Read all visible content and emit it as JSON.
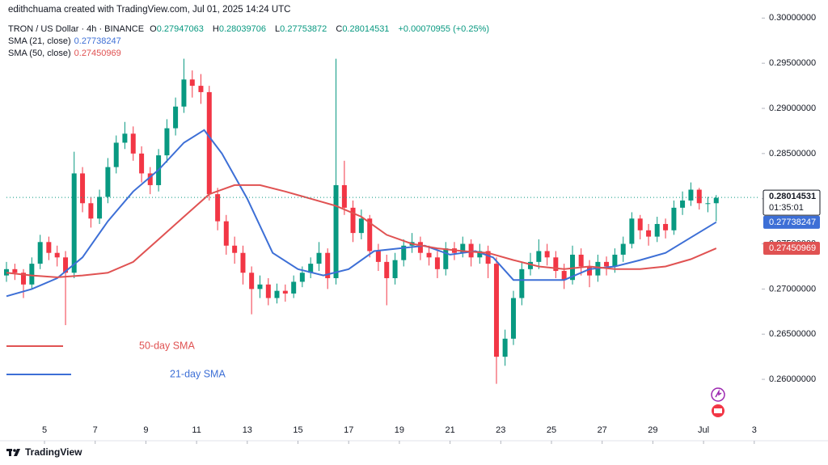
{
  "header": {
    "credit": "edithchuama created with TradingView.com, Jul 01, 2025 14:24 UTC",
    "symbol": "TRON / US Dollar · 4h · BINANCE",
    "ohlc": [
      {
        "label": "O",
        "value": "0.27947063"
      },
      {
        "label": "H",
        "value": "0.28039706"
      },
      {
        "label": "L",
        "value": "0.27753872"
      },
      {
        "label": "C",
        "value": "0.28014531"
      }
    ],
    "change": "+0.00070955 (+0.25%)"
  },
  "indicators": [
    {
      "name": "SMA (21, close)",
      "value": "0.27738247"
    },
    {
      "name": "SMA (50, close)",
      "value": "0.27450969"
    }
  ],
  "footer": "TradingView",
  "chart_data": {
    "type": "candlestick",
    "x": [
      3.5,
      3.83,
      4.17,
      4.5,
      4.83,
      5.17,
      5.5,
      5.83,
      6.17,
      6.5,
      6.83,
      7.17,
      7.5,
      7.83,
      8.17,
      8.5,
      8.83,
      9.17,
      9.5,
      9.83,
      10.17,
      10.5,
      10.83,
      11.17,
      11.5,
      11.83,
      12.17,
      12.5,
      12.83,
      13.17,
      13.5,
      13.83,
      14.17,
      14.5,
      14.83,
      15.17,
      15.5,
      15.83,
      16.17,
      16.5,
      16.83,
      17.17,
      17.5,
      17.83,
      18.17,
      18.5,
      18.83,
      19.17,
      19.5,
      19.83,
      20.17,
      20.5,
      20.83,
      21.17,
      21.5,
      21.83,
      22.17,
      22.5,
      22.83,
      23.17,
      23.5,
      23.83,
      24.17,
      24.5,
      24.83,
      25.17,
      25.5,
      25.83,
      26.17,
      26.5,
      26.83,
      27.17,
      27.5,
      27.83,
      28.17,
      28.5,
      28.83,
      29.17,
      29.5,
      29.83,
      30.17,
      30.5,
      30.83,
      31.17,
      31.5
    ],
    "open": [
      0.2715,
      0.2722,
      0.2718,
      0.2705,
      0.2728,
      0.2752,
      0.274,
      0.2735,
      0.2718,
      0.2828,
      0.2795,
      0.2778,
      0.2802,
      0.2835,
      0.2862,
      0.2872,
      0.285,
      0.2828,
      0.2815,
      0.2848,
      0.2878,
      0.2902,
      0.2932,
      0.2925,
      0.2918,
      0.2805,
      0.2775,
      0.2748,
      0.274,
      0.2718,
      0.27,
      0.2705,
      0.269,
      0.2698,
      0.2695,
      0.2708,
      0.2718,
      0.2728,
      0.274,
      0.2712,
      0.2815,
      0.279,
      0.2762,
      0.2778,
      0.2742,
      0.273,
      0.2712,
      0.2732,
      0.2748,
      0.2752,
      0.274,
      0.2735,
      0.2722,
      0.2745,
      0.274,
      0.275,
      0.2735,
      0.2742,
      0.2728,
      0.2625,
      0.2645,
      0.269,
      0.2722,
      0.273,
      0.2742,
      0.2735,
      0.272,
      0.271,
      0.2738,
      0.2725,
      0.2715,
      0.273,
      0.2725,
      0.2738,
      0.275,
      0.2778,
      0.2765,
      0.2758,
      0.2772,
      0.2765,
      0.279,
      0.2798,
      0.281,
      0.2795,
      0.2795
    ],
    "high": [
      0.273,
      0.2728,
      0.2722,
      0.2735,
      0.276,
      0.2758,
      0.2748,
      0.2742,
      0.2852,
      0.2835,
      0.2802,
      0.281,
      0.2845,
      0.287,
      0.2885,
      0.288,
      0.2858,
      0.2835,
      0.2855,
      0.2888,
      0.2912,
      0.2955,
      0.2942,
      0.2938,
      0.2925,
      0.2812,
      0.2782,
      0.2758,
      0.2748,
      0.2725,
      0.2715,
      0.2712,
      0.2706,
      0.2705,
      0.2715,
      0.2725,
      0.2735,
      0.2752,
      0.2745,
      0.2955,
      0.2842,
      0.2798,
      0.2788,
      0.2782,
      0.275,
      0.2738,
      0.274,
      0.2755,
      0.2762,
      0.2758,
      0.2748,
      0.2742,
      0.2752,
      0.2752,
      0.2758,
      0.2755,
      0.275,
      0.2748,
      0.2735,
      0.2655,
      0.2698,
      0.273,
      0.274,
      0.2755,
      0.275,
      0.2742,
      0.2728,
      0.2748,
      0.2745,
      0.2732,
      0.2738,
      0.2736,
      0.2745,
      0.2758,
      0.2785,
      0.2782,
      0.2772,
      0.278,
      0.2778,
      0.2798,
      0.2808,
      0.2818,
      0.2812,
      0.2802,
      0.2804
    ],
    "low": [
      0.2708,
      0.271,
      0.269,
      0.27,
      0.2722,
      0.2732,
      0.2725,
      0.266,
      0.2712,
      0.2785,
      0.2768,
      0.2772,
      0.2795,
      0.2828,
      0.2855,
      0.2842,
      0.2818,
      0.2805,
      0.2808,
      0.284,
      0.287,
      0.2895,
      0.2912,
      0.2905,
      0.2798,
      0.2765,
      0.2738,
      0.2728,
      0.2705,
      0.2672,
      0.269,
      0.2682,
      0.2684,
      0.2686,
      0.269,
      0.2702,
      0.2712,
      0.272,
      0.27,
      0.2705,
      0.2782,
      0.2752,
      0.2755,
      0.2735,
      0.272,
      0.2682,
      0.2705,
      0.2725,
      0.274,
      0.2732,
      0.2726,
      0.2712,
      0.2715,
      0.2732,
      0.2735,
      0.2725,
      0.2728,
      0.2712,
      0.2595,
      0.2615,
      0.2638,
      0.2682,
      0.2715,
      0.2722,
      0.2726,
      0.2712,
      0.27,
      0.2705,
      0.2715,
      0.2702,
      0.2708,
      0.2715,
      0.2718,
      0.273,
      0.2745,
      0.2755,
      0.2748,
      0.2752,
      0.2756,
      0.276,
      0.2782,
      0.2792,
      0.2788,
      0.2785,
      0.2775
    ],
    "close": [
      0.2722,
      0.2718,
      0.2705,
      0.2728,
      0.2752,
      0.274,
      0.2735,
      0.2718,
      0.2828,
      0.2795,
      0.2778,
      0.2802,
      0.2835,
      0.2862,
      0.2872,
      0.285,
      0.2828,
      0.2815,
      0.2848,
      0.2878,
      0.2902,
      0.2932,
      0.2925,
      0.2918,
      0.2805,
      0.2775,
      0.2748,
      0.274,
      0.2718,
      0.27,
      0.2705,
      0.269,
      0.2698,
      0.2695,
      0.2708,
      0.2718,
      0.2728,
      0.274,
      0.2712,
      0.2815,
      0.279,
      0.2762,
      0.2778,
      0.2742,
      0.273,
      0.2712,
      0.2732,
      0.2748,
      0.2752,
      0.274,
      0.2735,
      0.2722,
      0.2745,
      0.274,
      0.275,
      0.2735,
      0.2742,
      0.2728,
      0.2625,
      0.2645,
      0.269,
      0.2722,
      0.273,
      0.2742,
      0.2735,
      0.272,
      0.271,
      0.2738,
      0.2725,
      0.2715,
      0.273,
      0.2725,
      0.2738,
      0.275,
      0.2778,
      0.2765,
      0.2758,
      0.2772,
      0.2765,
      0.279,
      0.2798,
      0.281,
      0.2795,
      0.2795,
      0.2801
    ],
    "up_color": "#089981",
    "down_color": "#f23645",
    "series": [
      {
        "name": "21-day SMA",
        "color": "#3d6fd6",
        "x": [
          3.5,
          4.5,
          5.5,
          6.5,
          7.5,
          8.5,
          9.5,
          10.5,
          11.3,
          12,
          13,
          14,
          15,
          16,
          17,
          18,
          19,
          20,
          21,
          22,
          22.7,
          23.5,
          24.5,
          25.5,
          26.5,
          27.5,
          28.5,
          29.5,
          30.5,
          31.5
        ],
        "values": [
          0.2692,
          0.27,
          0.2712,
          0.2735,
          0.2775,
          0.2808,
          0.2832,
          0.2862,
          0.2876,
          0.285,
          0.28,
          0.274,
          0.2722,
          0.2715,
          0.2722,
          0.2742,
          0.2745,
          0.2748,
          0.2738,
          0.2742,
          0.2735,
          0.271,
          0.271,
          0.271,
          0.2722,
          0.2725,
          0.2732,
          0.274,
          0.2757,
          0.2774
        ]
      },
      {
        "name": "50-day SMA",
        "color": "#e05252",
        "x": [
          3.5,
          4.5,
          5.5,
          6.5,
          7.5,
          8.5,
          9.5,
          10.5,
          11.5,
          12.5,
          13.5,
          14.5,
          15.5,
          16.5,
          17.5,
          18.5,
          19.5,
          20.5,
          21.5,
          22.5,
          23.5,
          24.5,
          25.5,
          26.5,
          27.5,
          28.5,
          29.5,
          30.5,
          31.5
        ],
        "values": [
          0.2718,
          0.2715,
          0.2713,
          0.2715,
          0.2718,
          0.273,
          0.2755,
          0.278,
          0.2805,
          0.2815,
          0.2815,
          0.2808,
          0.28,
          0.2792,
          0.278,
          0.276,
          0.275,
          0.2745,
          0.2742,
          0.274,
          0.2732,
          0.2725,
          0.2722,
          0.2725,
          0.2722,
          0.2722,
          0.2725,
          0.2733,
          0.2745
        ]
      }
    ],
    "xlim": [
      3.5,
      33.23
    ],
    "xticks": [
      5,
      7,
      9,
      11,
      13,
      15,
      17,
      19,
      21,
      23,
      25,
      27,
      29,
      {
        "value": 31,
        "label": "Jul"
      },
      {
        "value": 33,
        "label": "3"
      }
    ],
    "ylim": [
      0.2532,
      0.302
    ],
    "yticks": [
      {
        "value": 0.26,
        "label": "0.26000000"
      },
      {
        "value": 0.265,
        "label": "0.26500000"
      },
      {
        "value": 0.27,
        "label": "0.27000000"
      },
      {
        "value": 0.275,
        "label": "0.27500000"
      },
      {
        "value": 0.28,
        "label": "0.28000000"
      },
      {
        "value": 0.285,
        "label": "0.28500000"
      },
      {
        "value": 0.29,
        "label": "0.29000000"
      },
      {
        "value": 0.295,
        "label": "0.29500000"
      },
      {
        "value": 0.3,
        "label": "0.30000000"
      }
    ],
    "grid": false,
    "last_price": 0.28014531,
    "countdown": "01:35:01",
    "sma_labels": [
      0.27738247,
      0.27450969
    ]
  }
}
